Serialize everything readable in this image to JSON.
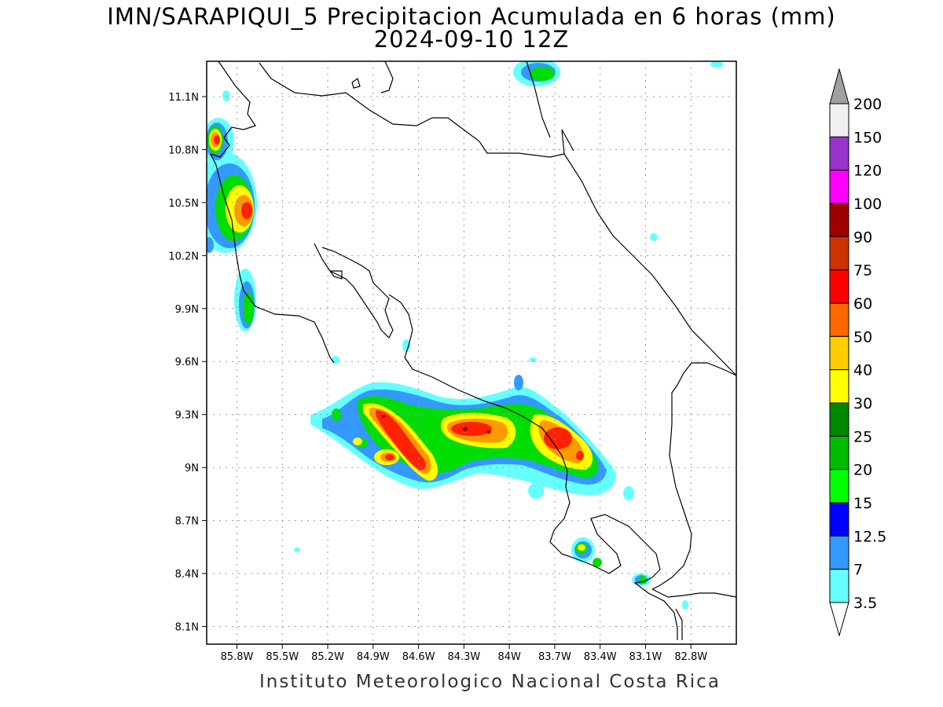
{
  "title": "IMN/SARAPIQUI_5 Precipitacion Acumulada en 6 horas (mm)",
  "subtitle": "2024-09-10 12Z",
  "footer": "Instituto Meteorologico Nacional Costa Rica",
  "map": {
    "lon_range": [
      -86.0,
      -82.5
    ],
    "lat_range": [
      8.0,
      11.3
    ],
    "lon_ticks": [
      "85.8W",
      "85.5W",
      "85.2W",
      "84.9W",
      "84.6W",
      "84.3W",
      "84W",
      "83.7W",
      "83.4W",
      "83.1W",
      "82.8W"
    ],
    "lat_ticks": [
      "11.1N",
      "10.8N",
      "10.5N",
      "10.2N",
      "9.9N",
      "9.6N",
      "9.3N",
      "9N",
      "8.7N",
      "8.4N",
      "8.1N"
    ],
    "grid": true
  },
  "colorbar": {
    "labels": [
      "200",
      "150",
      "120",
      "100",
      "90",
      "75",
      "60",
      "50",
      "40",
      "30",
      "25",
      "20",
      "15",
      "12.5",
      "7",
      "3.5"
    ],
    "colors": [
      "#f0f0f0",
      "#9933cc",
      "#ff00ff",
      "#a00000",
      "#cc3300",
      "#ff0000",
      "#ff6600",
      "#ffcc00",
      "#ffff00",
      "#008800",
      "#00bb00",
      "#00ff00",
      "#0000ff",
      "#3399ff",
      "#66ffff"
    ],
    "over_color": "#a0a0a0",
    "under_color": "#ffffff"
  },
  "precip_cells": [
    {
      "lon": -84.78,
      "lat": 9.18,
      "rx": 22,
      "ry": 10,
      "rot": 30,
      "level": 8
    },
    {
      "lon": -84.6,
      "lat": 9.05,
      "rx": 16,
      "ry": 10,
      "rot": 35,
      "level": 9
    },
    {
      "lon": -84.28,
      "lat": 9.21,
      "rx": 22,
      "ry": 9,
      "rot": 5,
      "level": 9
    },
    {
      "lon": -84.12,
      "lat": 9.18,
      "rx": 15,
      "ry": 7,
      "rot": 10,
      "level": 8
    },
    {
      "lon": -83.65,
      "lat": 9.1,
      "rx": 25,
      "ry": 12,
      "rot": 20,
      "level": 8
    },
    {
      "lon": -85.73,
      "lat": 10.47,
      "rx": 13,
      "ry": 15,
      "rot": 0,
      "level": 7
    },
    {
      "lon": -85.88,
      "lat": 10.87,
      "rx": 8,
      "ry": 12,
      "rot": 0,
      "level": 7
    },
    {
      "lon": -85.05,
      "lat": 9.14,
      "rx": 6,
      "ry": 4,
      "rot": 0,
      "level": 6
    }
  ]
}
